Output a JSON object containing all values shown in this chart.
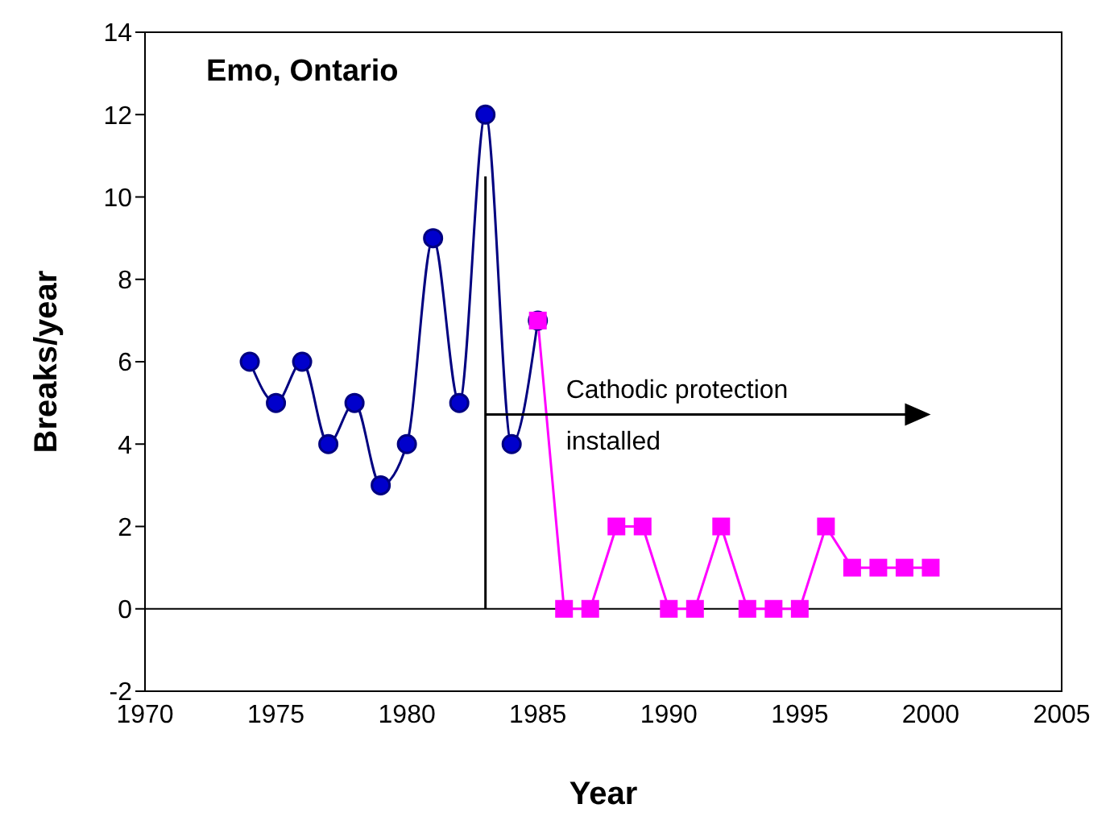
{
  "chart_data": {
    "type": "line",
    "title": "Emo, Ontario",
    "xlabel": "Year",
    "ylabel": "Breaks/year",
    "xlim": [
      1970,
      2005
    ],
    "xticks": [
      1970,
      1975,
      1980,
      1985,
      1990,
      1995,
      2000,
      2005
    ],
    "ylim": [
      -2,
      14
    ],
    "yticks": [
      -2,
      0,
      2,
      4,
      6,
      8,
      10,
      12,
      14
    ],
    "grid": false,
    "series": [
      {
        "color": "#000080",
        "marker": "circle",
        "x": [
          1974,
          1975,
          1976,
          1977,
          1978,
          1979,
          1980,
          1981,
          1982,
          1983,
          1984,
          1985
        ],
        "values": [
          6,
          5,
          6,
          4,
          5,
          3,
          4,
          9,
          5,
          12,
          4,
          7
        ]
      },
      {
        "color": "#ff00ff",
        "marker": "square",
        "x": [
          1985,
          1986,
          1987,
          1988,
          1989,
          1990,
          1991,
          1992,
          1993,
          1994,
          1995,
          1996,
          1997,
          1998,
          1999,
          2000
        ],
        "values": [
          7,
          0,
          0,
          2,
          2,
          0,
          0,
          2,
          0,
          0,
          0,
          2,
          1,
          1,
          1,
          1
        ]
      }
    ],
    "ref_lines": [
      {
        "axis": "y",
        "value": 0,
        "color": "#000000"
      },
      {
        "axis": "x",
        "value": 1983,
        "color": "#000000"
      }
    ],
    "annotations": [
      "Cathodic protection installed"
    ]
  }
}
